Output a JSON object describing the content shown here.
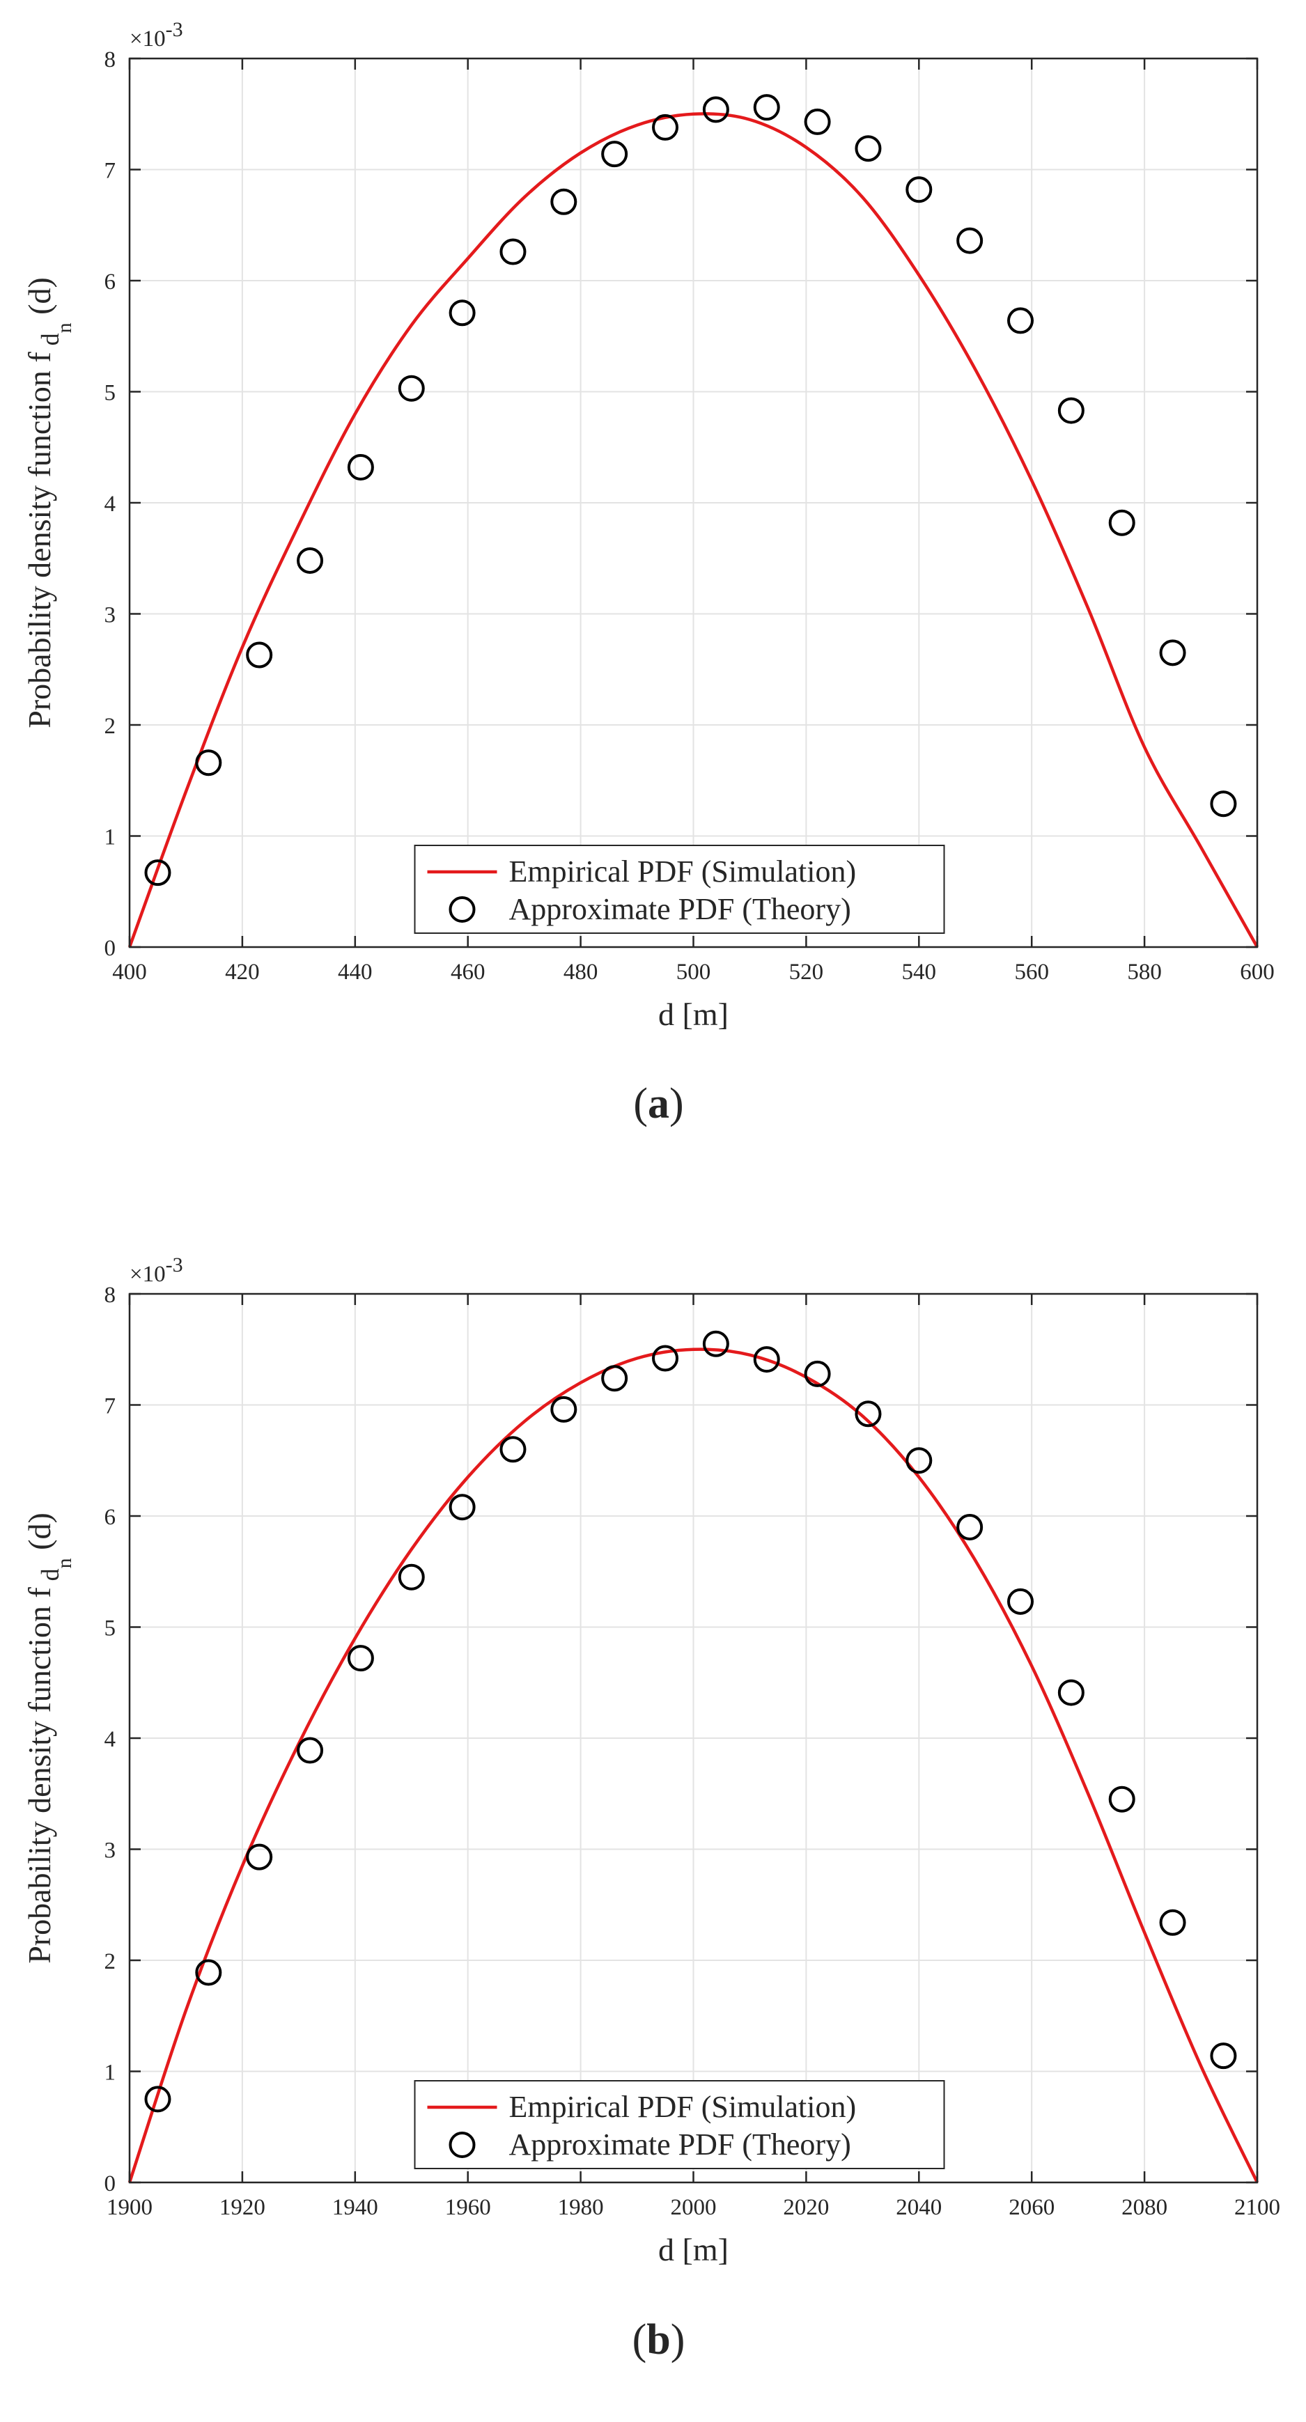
{
  "chart_data": [
    {
      "type": "line",
      "panel_label": "a",
      "xlabel": "d [m]",
      "ylabel_main": "Probability density function f",
      "ylabel_sub": "d",
      "ylabel_subsub": "n",
      "ylabel_suffix": "(d)",
      "y_exponent_label": "×10",
      "y_exponent": "-3",
      "xlim": [
        400,
        600
      ],
      "ylim": [
        0,
        8
      ],
      "xticks": [
        "400",
        "420",
        "440",
        "460",
        "480",
        "500",
        "520",
        "540",
        "560",
        "580",
        "600"
      ],
      "yticks": [
        "0",
        "1",
        "2",
        "3",
        "4",
        "5",
        "6",
        "7",
        "8"
      ],
      "grid": true,
      "legend_position": "bottom-center",
      "colors": {
        "empirical": "#e41a1c",
        "theory": "#000000",
        "grid": "#e3e3e3",
        "axis": "#262626"
      },
      "series": [
        {
          "name": "Empirical PDF (Simulation)",
          "kind": "line",
          "x": [
            400,
            410,
            420,
            430,
            440,
            450,
            460,
            470,
            480,
            490,
            500,
            510,
            520,
            530,
            540,
            550,
            560,
            570,
            580,
            590,
            600
          ],
          "y": [
            0,
            1.4,
            2.7,
            3.8,
            4.8,
            5.6,
            6.2,
            6.75,
            7.15,
            7.4,
            7.5,
            7.45,
            7.2,
            6.75,
            6.05,
            5.2,
            4.2,
            3.05,
            1.8,
            0.9,
            0
          ]
        },
        {
          "name": "Approximate PDF (Theory)",
          "kind": "scatter",
          "x": [
            405,
            414,
            423,
            432,
            441,
            450,
            459,
            468,
            477,
            486,
            495,
            504,
            513,
            522,
            531,
            540,
            549,
            558,
            567,
            576,
            585,
            594
          ],
          "y": [
            0.67,
            1.66,
            2.63,
            3.48,
            4.32,
            5.03,
            5.71,
            6.26,
            6.71,
            7.14,
            7.38,
            7.54,
            7.56,
            7.43,
            7.19,
            6.82,
            6.36,
            5.64,
            4.83,
            3.82,
            2.65,
            1.29
          ]
        }
      ]
    },
    {
      "type": "line",
      "panel_label": "b",
      "xlabel": "d [m]",
      "ylabel_main": "Probability density function f",
      "ylabel_sub": "d",
      "ylabel_subsub": "n",
      "ylabel_suffix": "(d)",
      "y_exponent_label": "×10",
      "y_exponent": "-3",
      "xlim": [
        1900,
        2100
      ],
      "ylim": [
        0,
        8
      ],
      "xticks": [
        "1900",
        "1920",
        "1940",
        "1960",
        "1980",
        "2000",
        "2020",
        "2040",
        "2060",
        "2080",
        "2100"
      ],
      "yticks": [
        "0",
        "1",
        "2",
        "3",
        "4",
        "5",
        "6",
        "7",
        "8"
      ],
      "grid": true,
      "legend_position": "bottom-center",
      "colors": {
        "empirical": "#e41a1c",
        "theory": "#000000",
        "grid": "#e3e3e3",
        "axis": "#262626"
      },
      "series": [
        {
          "name": "Empirical PDF (Simulation)",
          "kind": "line",
          "x": [
            1900,
            1910,
            1920,
            1930,
            1940,
            1950,
            1960,
            1970,
            1980,
            1990,
            2000,
            2010,
            2020,
            2030,
            2040,
            2050,
            2060,
            2070,
            2080,
            2090,
            2100
          ],
          "y": [
            0,
            1.55,
            2.85,
            3.95,
            4.9,
            5.7,
            6.35,
            6.85,
            7.2,
            7.42,
            7.5,
            7.45,
            7.25,
            6.9,
            6.35,
            5.6,
            4.65,
            3.5,
            2.25,
            1.05,
            0
          ]
        },
        {
          "name": "Approximate PDF (Theory)",
          "kind": "scatter",
          "x": [
            1905,
            1914,
            1923,
            1932,
            1941,
            1950,
            1959,
            1968,
            1977,
            1986,
            1995,
            2004,
            2013,
            2022,
            2031,
            2040,
            2049,
            2058,
            2067,
            2076,
            2085,
            2094
          ],
          "y": [
            0.75,
            1.89,
            2.93,
            3.89,
            4.72,
            5.45,
            6.08,
            6.6,
            6.96,
            7.24,
            7.42,
            7.55,
            7.41,
            7.28,
            6.92,
            6.5,
            5.9,
            5.23,
            4.41,
            3.45,
            2.34,
            1.14
          ]
        }
      ]
    }
  ]
}
